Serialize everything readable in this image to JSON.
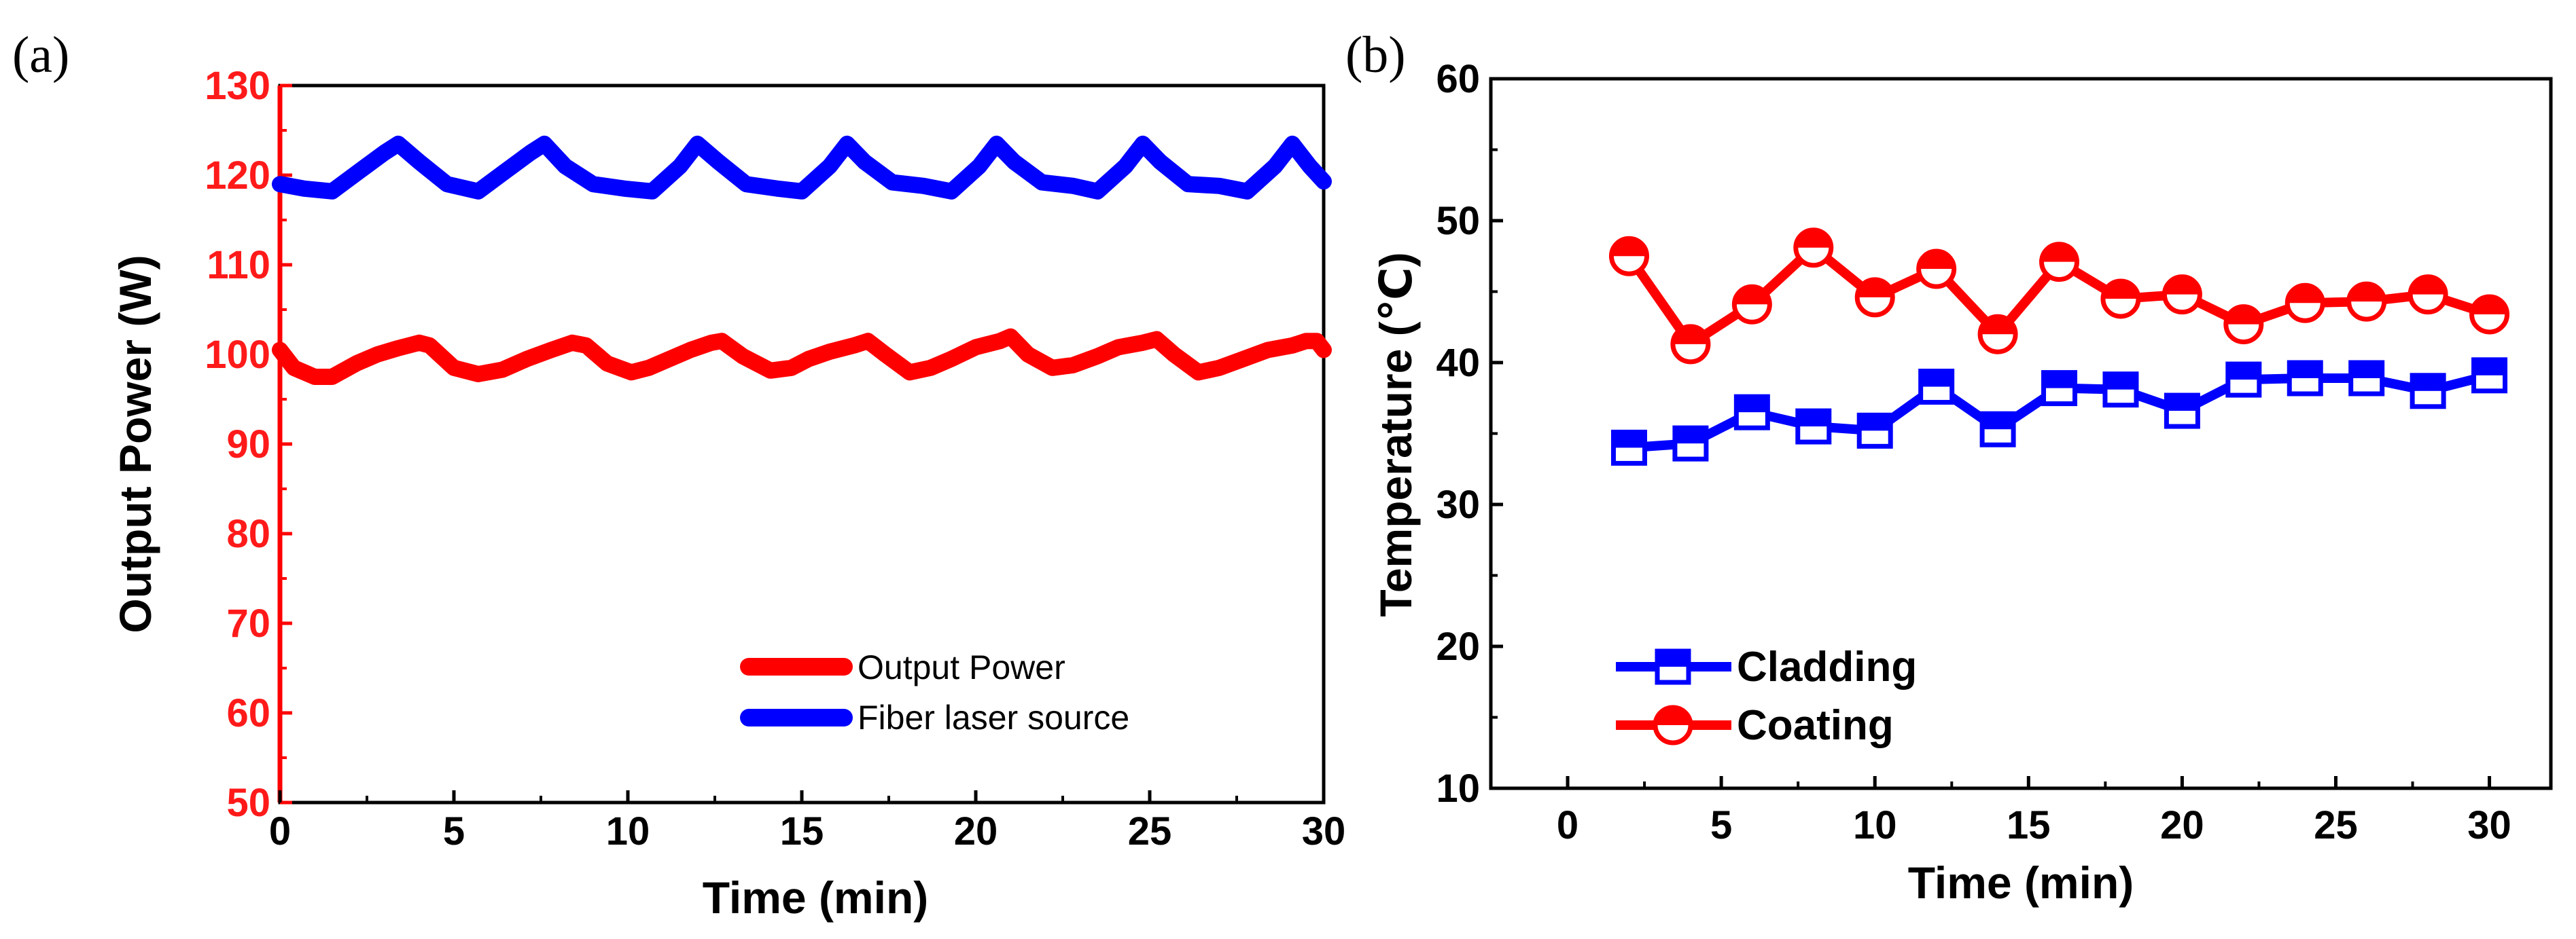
{
  "figure": {
    "label_a": "(a)",
    "label_b": "(b)"
  },
  "chart_data": [
    {
      "type": "line",
      "panel": "(a)",
      "title": "",
      "xlabel": "Time (min)",
      "ylabel": "Output Power (W)",
      "xlim": [
        0,
        30
      ],
      "ylim": [
        50,
        130
      ],
      "xticks": [
        0,
        5,
        10,
        15,
        20,
        25,
        30
      ],
      "yticks": [
        50,
        60,
        70,
        80,
        90,
        100,
        110,
        120,
        130
      ],
      "legend_position": "bottom-right",
      "series": [
        {
          "name": "Output Power",
          "color": "#ff0000",
          "x": [
            0,
            0.4,
            1.0,
            1.5,
            2.2,
            2.8,
            3.4,
            4.0,
            4.3,
            5.0,
            5.7,
            6.4,
            7.1,
            7.8,
            8.4,
            8.8,
            9.4,
            10.1,
            10.6,
            11.2,
            11.8,
            12.4,
            12.7,
            13.3,
            14.1,
            14.7,
            15.2,
            15.8,
            16.5,
            16.9,
            17.4,
            18.1,
            18.7,
            19.3,
            20.0,
            20.7,
            21.0,
            21.5,
            22.2,
            22.8,
            23.5,
            24.1,
            24.8,
            25.2,
            25.7,
            26.4,
            27.0,
            27.7,
            28.4,
            29.1,
            29.5,
            29.8,
            30.0
          ],
          "values": [
            100.5,
            98.5,
            97.5,
            97.5,
            99.0,
            100.0,
            100.7,
            101.3,
            101.0,
            98.5,
            97.8,
            98.3,
            99.5,
            100.5,
            101.3,
            101.0,
            99.0,
            98.0,
            98.5,
            99.5,
            100.5,
            101.3,
            101.5,
            99.8,
            98.2,
            98.5,
            99.5,
            100.3,
            101.0,
            101.5,
            100.0,
            98.0,
            98.5,
            99.5,
            100.8,
            101.5,
            102.0,
            100.0,
            98.5,
            98.8,
            99.8,
            100.8,
            101.3,
            101.7,
            100.0,
            98.0,
            98.5,
            99.5,
            100.5,
            101.0,
            101.5,
            101.5,
            100.5
          ]
        },
        {
          "name": "Fiber laser source",
          "color": "#0000ff",
          "x": [
            0,
            0.7,
            1.5,
            2.3,
            3.0,
            3.4,
            4.0,
            4.8,
            5.7,
            6.5,
            7.2,
            7.6,
            8.2,
            9.0,
            9.9,
            10.7,
            11.5,
            12.0,
            12.6,
            13.4,
            14.3,
            15.0,
            15.8,
            16.3,
            16.8,
            17.6,
            18.5,
            19.3,
            20.1,
            20.6,
            21.1,
            21.9,
            22.8,
            23.5,
            24.3,
            24.8,
            25.3,
            26.1,
            27.0,
            27.8,
            28.6,
            29.1,
            29.6,
            30.0
          ],
          "values": [
            119.0,
            118.5,
            118.2,
            120.5,
            122.5,
            123.5,
            121.5,
            119.0,
            118.2,
            120.5,
            122.5,
            123.5,
            121.0,
            119.0,
            118.5,
            118.2,
            121.0,
            123.5,
            121.5,
            119.0,
            118.5,
            118.2,
            121.0,
            123.5,
            121.5,
            119.2,
            118.8,
            118.2,
            121.0,
            123.5,
            121.5,
            119.2,
            118.8,
            118.2,
            121.0,
            123.5,
            121.5,
            119.0,
            118.8,
            118.2,
            121.0,
            123.5,
            121.0,
            119.3
          ]
        }
      ]
    },
    {
      "type": "line",
      "panel": "(b)",
      "title": "",
      "xlabel": "Time (min)",
      "ylabel": "Temperature (℃)",
      "xlim": [
        -2.5,
        32
      ],
      "ylim": [
        10,
        60
      ],
      "xticks": [
        0,
        5,
        10,
        15,
        20,
        25,
        30
      ],
      "yticks": [
        10,
        20,
        30,
        40,
        50,
        60
      ],
      "legend_position": "bottom-left",
      "series": [
        {
          "name": "Cladding",
          "marker": "half-filled-square",
          "color": "#0000ff",
          "x": [
            2,
            4,
            6,
            8,
            10,
            12,
            14,
            16,
            18,
            20,
            22,
            24,
            26,
            28,
            30
          ],
          "values": [
            34.0,
            34.3,
            36.5,
            35.5,
            35.2,
            38.3,
            35.3,
            38.2,
            38.1,
            36.6,
            38.8,
            38.9,
            38.9,
            38.0,
            39.1
          ]
        },
        {
          "name": "Coating",
          "marker": "half-filled-circle",
          "color": "#ff0000",
          "x": [
            2,
            4,
            6,
            8,
            10,
            12,
            14,
            16,
            18,
            20,
            22,
            24,
            26,
            28,
            30
          ],
          "values": [
            47.5,
            41.3,
            44.1,
            48.1,
            44.6,
            46.6,
            42.0,
            47.1,
            44.5,
            44.8,
            42.7,
            44.2,
            44.3,
            44.8,
            43.4
          ]
        }
      ]
    }
  ]
}
